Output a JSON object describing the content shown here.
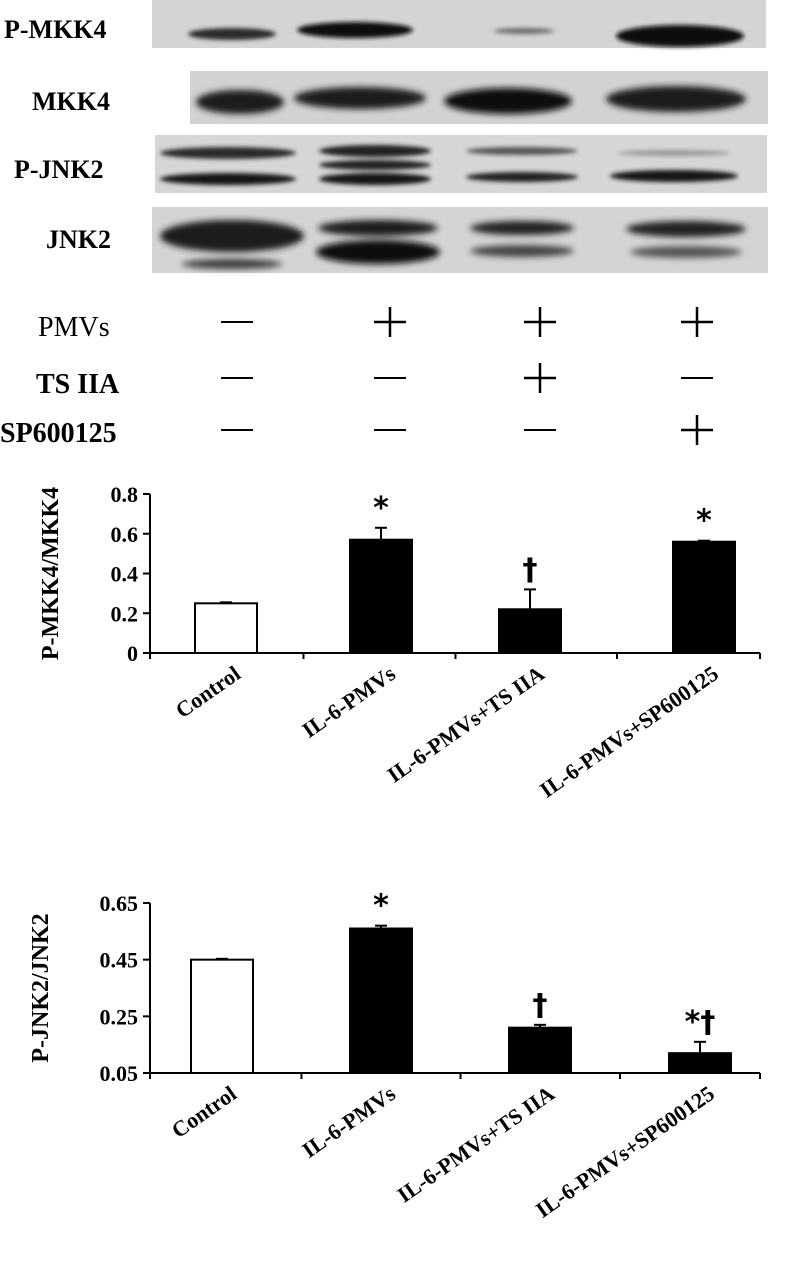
{
  "blots": {
    "rows": [
      {
        "label": "P-MKK4"
      },
      {
        "label": "MKK4"
      },
      {
        "label": "P-JNK2"
      },
      {
        "label": "JNK2"
      }
    ]
  },
  "treatments": {
    "rows": [
      {
        "label": "PMVs",
        "signs": [
          "—",
          "+",
          "+",
          "+"
        ]
      },
      {
        "label": "TS IIA",
        "signs": [
          "—",
          "—",
          "+",
          "—"
        ]
      },
      {
        "label": "SP600125",
        "signs": [
          "—",
          "—",
          "—",
          "+"
        ]
      }
    ]
  },
  "chart_data": [
    {
      "type": "bar",
      "ylabel": "P-MKK4/MKK4",
      "categories": [
        "Control",
        "IL-6-PMVs",
        "IL-6-PMVs+TS IIA",
        "IL-6-PMVs+SP600125"
      ],
      "values": [
        0.25,
        0.57,
        0.22,
        0.56
      ],
      "errors": [
        0.005,
        0.06,
        0.1,
        0.005
      ],
      "annotations": [
        "",
        "*",
        "†",
        "*"
      ],
      "ylim": [
        0,
        0.8
      ],
      "yticks": [
        "0",
        "0.2",
        "0.4",
        "0.6",
        "0.8"
      ],
      "bar_colors": [
        "#ffffff",
        "#000000",
        "#000000",
        "#000000"
      ]
    },
    {
      "type": "bar",
      "ylabel": "P-JNK2/JNK2",
      "categories": [
        "Control",
        "IL-6-PMVs",
        "IL-6-PMVs+TS IIA",
        "IL-6-PMVs+SP600125"
      ],
      "values": [
        0.45,
        0.56,
        0.21,
        0.12
      ],
      "errors": [
        0.003,
        0.01,
        0.01,
        0.04
      ],
      "annotations": [
        "",
        "*",
        "†",
        "*†"
      ],
      "ylim": [
        0.05,
        0.65
      ],
      "yticks": [
        "0.05",
        "0.25",
        "0.45",
        "0.65"
      ],
      "bar_colors": [
        "#ffffff",
        "#000000",
        "#000000",
        "#000000"
      ]
    }
  ]
}
